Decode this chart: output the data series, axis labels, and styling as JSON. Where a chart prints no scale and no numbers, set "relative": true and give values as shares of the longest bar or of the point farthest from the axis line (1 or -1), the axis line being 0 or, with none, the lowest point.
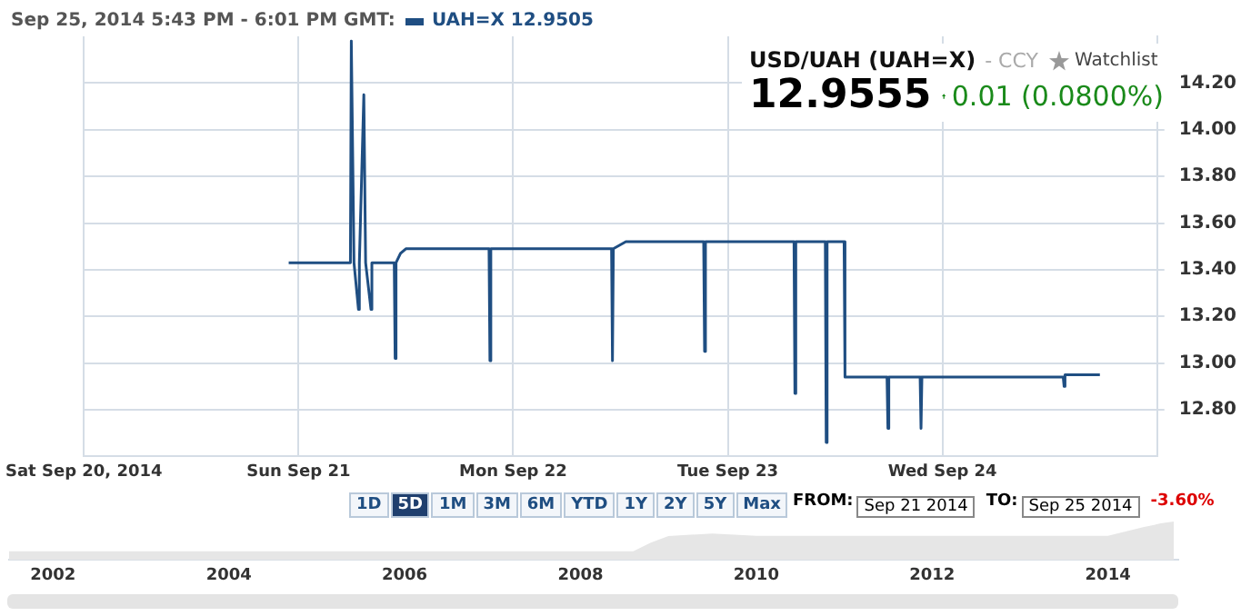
{
  "chart_data": [
    {
      "type": "line",
      "title": "USD/UAH (UAH=X)",
      "subtitle": "Sep 25, 2014 5:43 PM - 6:01 PM GMT:",
      "x": [
        "2014-09-20T22:54",
        "2014-09-21T05:48",
        "2014-09-21T05:54",
        "2014-09-21T06:12",
        "2014-09-21T06:42",
        "2014-09-21T06:48",
        "2014-09-21T07:18",
        "2014-09-21T07:30",
        "2014-09-21T08:06",
        "2014-09-21T08:12",
        "2014-09-21T10:42",
        "2014-09-21T10:48",
        "2014-09-21T10:54",
        "2014-09-21T11:24",
        "2014-09-21T12:00",
        "2014-09-21T21:18",
        "2014-09-21T21:24",
        "2014-09-21T21:30",
        "2014-09-22T11:00",
        "2014-09-22T11:06",
        "2014-09-22T11:12",
        "2014-09-22T12:36",
        "2014-09-22T21:18",
        "2014-09-22T21:24",
        "2014-09-22T21:30",
        "2014-09-23T07:24",
        "2014-09-23T07:30",
        "2014-09-23T07:36",
        "2014-09-23T10:54",
        "2014-09-23T11:00",
        "2014-09-23T11:06",
        "2014-09-23T13:00",
        "2014-09-23T13:06",
        "2014-09-23T17:48",
        "2014-09-23T17:54",
        "2014-09-23T18:00",
        "2014-09-23T21:30",
        "2014-09-23T21:36",
        "2014-09-23T21:42",
        "2014-09-24T13:30",
        "2014-09-24T13:36",
        "2014-09-24T13:42",
        "2014-09-24T17:36"
      ],
      "series": [
        {
          "name": "UAH=X 12.9505",
          "color": "#1f4e82",
          "values": [
            13.43,
            13.43,
            14.38,
            13.43,
            13.23,
            13.43,
            14.15,
            13.43,
            13.23,
            13.43,
            13.43,
            13.02,
            13.43,
            13.47,
            13.49,
            13.49,
            13.01,
            13.49,
            13.49,
            13.01,
            13.49,
            13.52,
            13.52,
            13.05,
            13.52,
            13.52,
            12.87,
            13.52,
            13.52,
            12.66,
            13.52,
            13.52,
            12.94,
            12.94,
            12.72,
            12.94,
            12.94,
            12.72,
            12.94,
            12.94,
            12.9,
            12.95,
            12.95
          ]
        }
      ],
      "xlim": [
        "2014-09-20",
        "2014-09-25"
      ],
      "xticks": [
        {
          "value": "2014-09-20",
          "label": "Sat Sep 20, 2014"
        },
        {
          "value": "2014-09-21",
          "label": "Sun Sep 21"
        },
        {
          "value": "2014-09-22",
          "label": "Mon Sep 22"
        },
        {
          "value": "2014-09-23",
          "label": "Tue Sep 23"
        },
        {
          "value": "2014-09-24",
          "label": "Wed Sep 24"
        },
        {
          "value": "2014-09-25",
          "label": null
        }
      ],
      "ylim": [
        12.6,
        14.4
      ],
      "yticks": [
        {
          "value": 12.8,
          "label": "12.80"
        },
        {
          "value": 13.0,
          "label": "13.00"
        },
        {
          "value": 13.2,
          "label": "13.20"
        },
        {
          "value": 13.4,
          "label": "13.40"
        },
        {
          "value": 13.6,
          "label": "13.60"
        },
        {
          "value": 13.8,
          "label": "13.80"
        },
        {
          "value": 14.0,
          "label": "14.00"
        },
        {
          "value": 14.2,
          "label": "14.20"
        }
      ],
      "grid": true,
      "legend": "top left",
      "marker": "none",
      "annotations": [
        "- CCY",
        "Watchlist",
        "12.9555",
        "0.01 (0.0800%)",
        "1D",
        "5D",
        "1M",
        "3M",
        "6M",
        "YTD",
        "1Y",
        "2Y",
        "5Y",
        "Max",
        "FROM:",
        "Sep 21 2014",
        "TO:",
        "Sep 25 2014",
        "-3.60%"
      ]
    },
    {
      "type": "area",
      "relative": true,
      "tick_labels": "x",
      "x": [
        2001.5,
        2003.5,
        2005.5,
        2007.5,
        2008.6,
        2008.8,
        2009.0,
        2009.5,
        2010.0,
        2012.0,
        2013.8,
        2014.0,
        2014.2,
        2014.4,
        2014.6,
        2014.75
      ],
      "series": [
        {
          "color": "#e6e6e6",
          "values": [
            0.23,
            0.23,
            0.23,
            0.23,
            0.23,
            0.45,
            0.62,
            0.69,
            0.63,
            0.63,
            0.63,
            0.63,
            0.74,
            0.85,
            0.95,
            1
          ]
        }
      ],
      "xlim": [
        2001.5,
        2014.8
      ],
      "marker": "none",
      "xticks": [
        2002,
        2004,
        2006,
        2008,
        2010,
        2012,
        2014
      ]
    }
  ]
}
